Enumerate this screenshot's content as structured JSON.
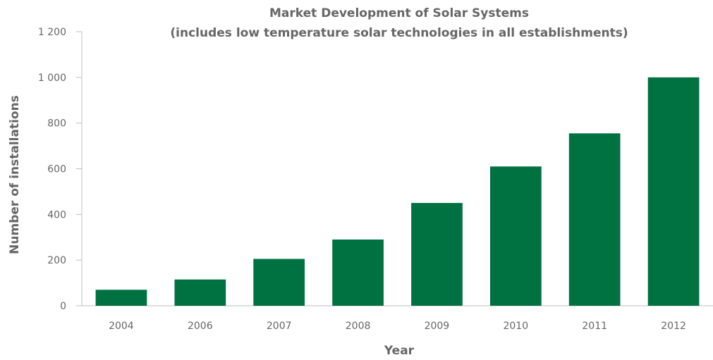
{
  "chart_data": {
    "type": "bar",
    "title": "Market Development of Solar Systems",
    "subtitle": "(includes low temperature solar technologies in all establishments)",
    "xlabel": "Year",
    "ylabel": "Number of installations",
    "categories": [
      "2004",
      "2006",
      "2007",
      "2008",
      "2009",
      "2010",
      "2011",
      "2012"
    ],
    "values": [
      70,
      115,
      205,
      290,
      450,
      610,
      755,
      1000
    ],
    "ylim": [
      0,
      1200
    ],
    "yticks": [
      0,
      200,
      400,
      600,
      800,
      1000,
      1200
    ],
    "ytick_labels": [
      "0",
      "200",
      "400",
      "600",
      "800",
      "1 000",
      "1 200"
    ],
    "grid": false,
    "bar_color": "#007140",
    "text_color": "#666666",
    "axis_color": "#bfbfbf"
  }
}
